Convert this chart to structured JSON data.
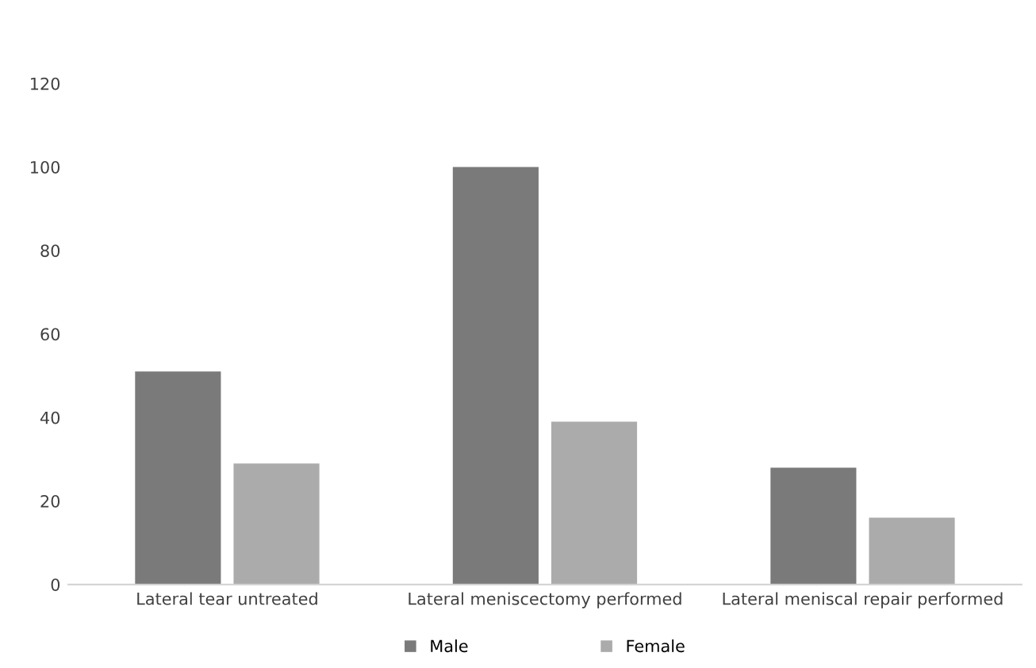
{
  "chart_data": {
    "type": "bar",
    "categories": [
      "Lateral tear untreated",
      "Lateral meniscectomy performed",
      "Lateral meniscal repair performed"
    ],
    "series": [
      {
        "name": "Male",
        "color": "#7a7a7a",
        "values": [
          51,
          100,
          28
        ]
      },
      {
        "name": "Female",
        "color": "#ababab",
        "values": [
          29,
          39,
          16
        ]
      }
    ],
    "ylim": [
      0,
      120
    ],
    "yticks": [
      0,
      20,
      40,
      60,
      80,
      100,
      120
    ],
    "grid": false,
    "legend": "bottom"
  }
}
